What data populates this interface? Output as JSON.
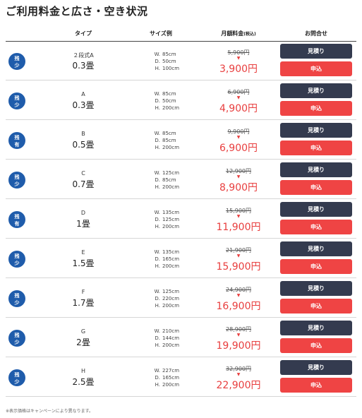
{
  "page_title": "ご利用料金と広さ・空き状況",
  "headers": {
    "type": "タイプ",
    "size": "サイズ例",
    "price": "月額料金",
    "tax": "(税込)",
    "contact": "お問合せ"
  },
  "buttons": {
    "quote": "見積り",
    "apply": "申込"
  },
  "arrow": "▼",
  "dim_labels": {
    "w": "W.",
    "d": "D.",
    "h": "H."
  },
  "rows": [
    {
      "badge": [
        "残",
        "少"
      ],
      "code": "２段式A",
      "size": "0.3畳",
      "w": "85cm",
      "d": "50cm",
      "h": "100cm",
      "old_price": "5,900円",
      "new_price": "3,900円"
    },
    {
      "badge": [
        "残",
        "少"
      ],
      "code": "A",
      "size": "0.3畳",
      "w": "85cm",
      "d": "50cm",
      "h": "200cm",
      "old_price": "6,900円",
      "new_price": "4,900円"
    },
    {
      "badge": [
        "残",
        "有"
      ],
      "code": "B",
      "size": "0.5畳",
      "w": "85cm",
      "d": "85cm",
      "h": "200cm",
      "old_price": "9,900円",
      "new_price": "6,900円"
    },
    {
      "badge": [
        "残",
        "少"
      ],
      "code": "C",
      "size": "0.7畳",
      "w": "125cm",
      "d": "85cm",
      "h": "200cm",
      "old_price": "12,900円",
      "new_price": "8,900円"
    },
    {
      "badge": [
        "残",
        "有"
      ],
      "code": "D",
      "size": "1畳",
      "w": "135cm",
      "d": "125cm",
      "h": "200cm",
      "old_price": "15,900円",
      "new_price": "11,900円"
    },
    {
      "badge": [
        "残",
        "少"
      ],
      "code": "E",
      "size": "1.5畳",
      "w": "135cm",
      "d": "165cm",
      "h": "200cm",
      "old_price": "21,900円",
      "new_price": "15,900円"
    },
    {
      "badge": [
        "残",
        "少"
      ],
      "code": "F",
      "size": "1.7畳",
      "w": "125cm",
      "d": "220cm",
      "h": "200cm",
      "old_price": "24,900円",
      "new_price": "16,900円"
    },
    {
      "badge": [
        "残",
        "少"
      ],
      "code": "G",
      "size": "2畳",
      "w": "210cm",
      "d": "144cm",
      "h": "200cm",
      "old_price": "28,900円",
      "new_price": "19,900円"
    },
    {
      "badge": [
        "残",
        "少"
      ],
      "code": "H",
      "size": "2.5畳",
      "w": "227cm",
      "d": "165cm",
      "h": "200cm",
      "old_price": "32,900円",
      "new_price": "22,900円"
    }
  ],
  "footnote": "※表示価格はキャンペーンにより異なります。",
  "colors": {
    "badge": "#1f5cab",
    "quote_button": "#343b4f",
    "apply_button": "#ef4444",
    "price_red": "#e83e3e"
  }
}
